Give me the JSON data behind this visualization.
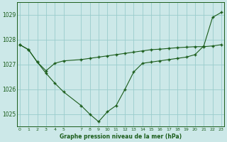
{
  "line1_x": [
    0,
    1,
    2,
    3,
    4,
    5,
    7,
    8,
    9,
    10,
    11,
    12,
    13,
    14,
    15,
    16,
    17,
    18,
    19,
    20,
    21,
    22,
    23
  ],
  "line1_y": [
    1027.8,
    1027.6,
    1027.1,
    1026.65,
    1026.25,
    1025.9,
    1025.35,
    1025.0,
    1024.7,
    1025.1,
    1025.35,
    1026.0,
    1026.7,
    1027.05,
    1027.1,
    1027.15,
    1027.2,
    1027.25,
    1027.3,
    1027.4,
    1027.75,
    1028.9,
    1029.1
  ],
  "line2_x": [
    0,
    1,
    2,
    3,
    4,
    5,
    7,
    8,
    9,
    10,
    11,
    12,
    13,
    14,
    15,
    16,
    17,
    18,
    19,
    20,
    21,
    22,
    23
  ],
  "line2_y": [
    1027.8,
    1027.6,
    1027.1,
    1026.75,
    1027.05,
    1027.15,
    1027.2,
    1027.25,
    1027.3,
    1027.35,
    1027.4,
    1027.45,
    1027.5,
    1027.55,
    1027.6,
    1027.62,
    1027.65,
    1027.68,
    1027.7,
    1027.72,
    1027.72,
    1027.75,
    1027.8
  ],
  "line_color": "#1a5c1a",
  "marker": "+",
  "bg_color": "#cce8e8",
  "grid_color": "#99cccc",
  "xlabel": "Graphe pression niveau de la mer (hPa)",
  "yticks": [
    1025,
    1026,
    1027,
    1028,
    1029
  ],
  "xticks": [
    0,
    1,
    2,
    3,
    4,
    5,
    7,
    8,
    9,
    10,
    11,
    12,
    13,
    14,
    15,
    16,
    17,
    18,
    19,
    20,
    21,
    22,
    23
  ],
  "xlim": [
    -0.3,
    23.3
  ],
  "ylim": [
    1024.5,
    1029.5
  ]
}
